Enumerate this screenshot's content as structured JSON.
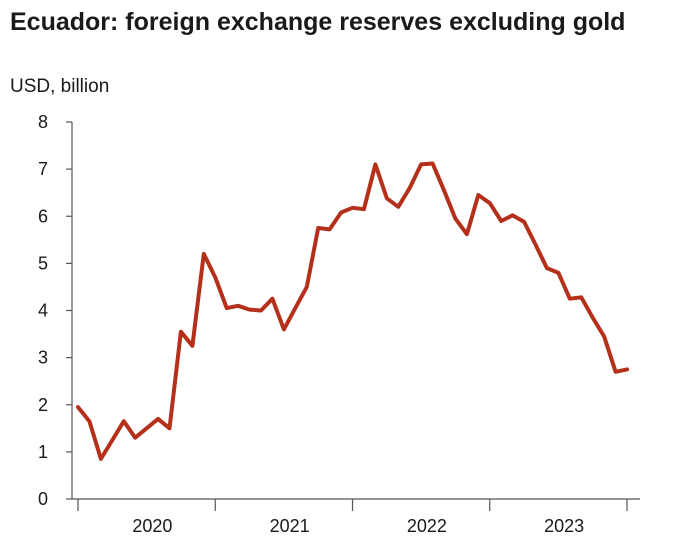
{
  "chart_data": {
    "type": "line",
    "title": "Ecuador: foreign exchange reserves excluding gold",
    "ylabel": "USD, billion",
    "xlabel": "",
    "ylim": [
      0,
      8
    ],
    "yticks": [
      0,
      1,
      2,
      3,
      4,
      5,
      6,
      7,
      8
    ],
    "xticks": [
      "2020",
      "2021",
      "2022",
      "2023"
    ],
    "grid": false,
    "legend": "none",
    "color": "#b5301b",
    "series": [
      {
        "x": [
          "2019-12",
          "2020-01",
          "2020-02",
          "2020-03",
          "2020-04",
          "2020-05",
          "2020-06",
          "2020-07",
          "2020-08",
          "2020-09",
          "2020-10",
          "2020-11",
          "2020-12",
          "2021-01",
          "2021-02",
          "2021-03",
          "2021-04",
          "2021-05",
          "2021-06",
          "2021-07",
          "2021-08",
          "2021-09",
          "2021-10",
          "2021-11",
          "2021-12",
          "2022-01",
          "2022-02",
          "2022-03",
          "2022-04",
          "2022-05",
          "2022-06",
          "2022-07",
          "2022-08",
          "2022-09",
          "2022-10",
          "2022-11",
          "2022-12",
          "2023-01",
          "2023-02",
          "2023-03",
          "2023-04",
          "2023-05",
          "2023-06",
          "2023-07",
          "2023-08",
          "2023-09",
          "2023-10",
          "2023-11",
          "2023-12"
        ],
        "values": [
          1.95,
          1.65,
          0.85,
          1.25,
          1.65,
          1.3,
          1.5,
          1.7,
          1.5,
          3.55,
          3.25,
          5.2,
          4.7,
          4.05,
          4.1,
          4.02,
          4.0,
          4.25,
          3.6,
          4.05,
          4.5,
          5.75,
          5.72,
          6.08,
          6.18,
          6.15,
          7.1,
          6.38,
          6.2,
          6.6,
          7.1,
          7.12,
          6.55,
          5.95,
          5.62,
          6.45,
          6.28,
          5.9,
          6.02,
          5.88,
          5.4,
          4.9,
          4.8,
          4.25,
          4.28,
          3.85,
          3.45,
          2.7,
          2.75
        ]
      }
    ]
  }
}
